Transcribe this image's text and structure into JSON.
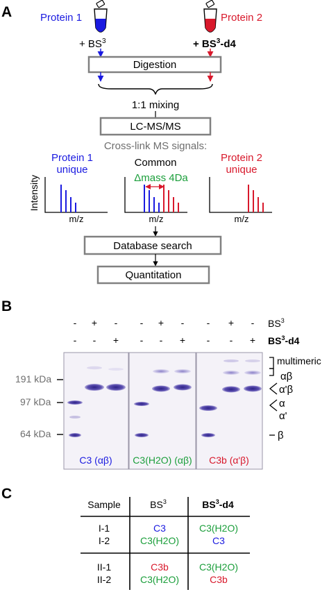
{
  "panel_a": {
    "label": "A",
    "protein1": "Protein 1",
    "protein2": "Protein 2",
    "reagent1": "+ BS",
    "reagent1_sup": "3",
    "reagent2": "+ BS",
    "reagent2_sup": "3",
    "reagent2_suffix": "-d4",
    "step_digestion": "Digestion",
    "step_mixing": "1:1 mixing",
    "step_lcms": "LC-MS/MS",
    "signals_heading": "Cross-link MS signals:",
    "spectra": {
      "unique1_line1": "Protein 1",
      "unique1_line2": "unique",
      "common": "Common",
      "delta_mass": "Δmass 4Da",
      "unique2_line1": "Protein 2",
      "unique2_line2": "unique",
      "y_label": "Intensity",
      "x_label": "m/z",
      "unique1_peaks": [
        1.0,
        0.8,
        0.55,
        0.35
      ],
      "common_blue_peaks": [
        1.0,
        0.8,
        0.55,
        0.35
      ],
      "common_red_peaks": [
        1.0,
        0.8,
        0.55,
        0.35
      ],
      "unique2_peaks": [
        1.0,
        0.8,
        0.55,
        0.35
      ]
    },
    "step_database": "Database search",
    "step_quant": "Quantitation"
  },
  "panel_b": {
    "label": "B",
    "row1_label": "BS",
    "row1_sup": "3",
    "row2_label": "BS",
    "row2_sup": "3",
    "row2_suffix": "-d4",
    "row1_signs": [
      "-",
      "+",
      "-",
      "-",
      "+",
      "-",
      "-",
      "+",
      "-"
    ],
    "row2_signs": [
      "-",
      "-",
      "+",
      "-",
      "-",
      "+",
      "-",
      "-",
      "+"
    ],
    "markers": [
      "191 kDa",
      "97 kDa",
      "64 kDa"
    ],
    "gels": [
      {
        "name": "C3",
        "chains": "(αβ)",
        "color": "#1a1ae0"
      },
      {
        "name": "C3(H2O)",
        "chains": "(αβ)",
        "color": "#1a9e3a"
      },
      {
        "name": "C3b",
        "chains": "(α'β)",
        "color": "#d8182b"
      }
    ],
    "right_labels": {
      "multimeric": "multimeric",
      "ab": "αβ",
      "apb": "α'β",
      "a": "α",
      "ap": "α'",
      "b": "β"
    }
  },
  "panel_c": {
    "label": "C",
    "headers": [
      "Sample",
      "BS",
      "BS"
    ],
    "header_sup": "3",
    "header_suffix": "-d4",
    "rows": [
      {
        "samples": [
          "I-1",
          "I-2"
        ],
        "bs3": [
          "C3",
          "C3(H2O)"
        ],
        "bs3d4": [
          "C3(H2O)",
          "C3"
        ]
      },
      {
        "samples": [
          "II-1",
          "II-2"
        ],
        "bs3": [
          "C3b",
          "C3(H2O)"
        ],
        "bs3d4": [
          "C3(H2O)",
          "C3b"
        ]
      }
    ]
  },
  "colors": {
    "blue": "#1a1ae0",
    "red": "#d8182b",
    "green": "#1a9e3a",
    "gel_band": "#4a3f9e"
  }
}
